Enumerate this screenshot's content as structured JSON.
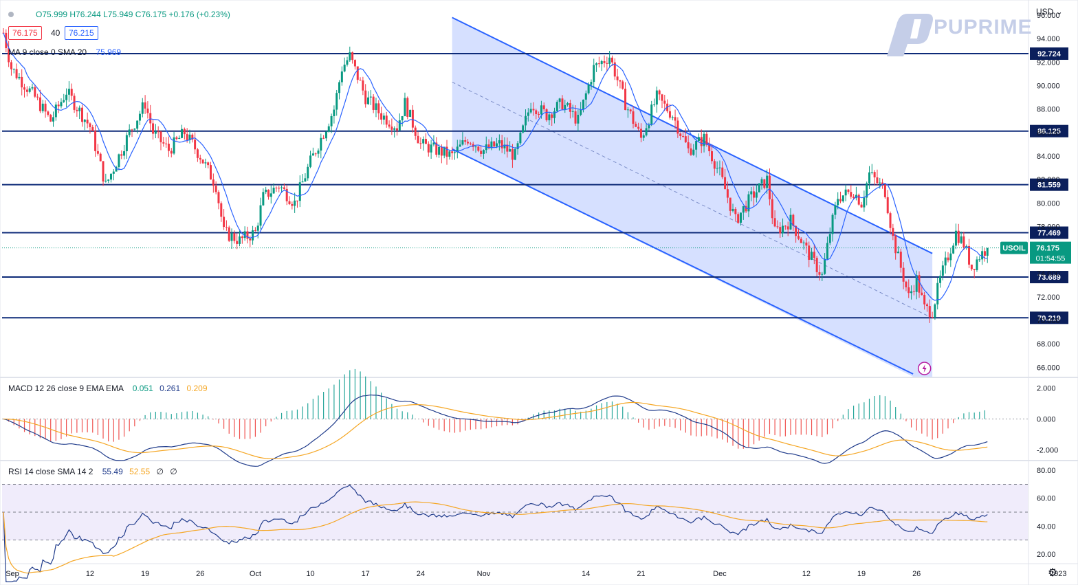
{
  "header": {
    "ohlc": "O75.999  H76.244  L75.949  C76.175  +0.176 (+0.23%)",
    "bid": "76.175",
    "spread": "40",
    "ask": "76.215",
    "currency": "USD",
    "ma_label": "MA 9 close 0 SMA 20",
    "ma_value": "75.969"
  },
  "logo": {
    "text": "PUPRIME"
  },
  "colors": {
    "up": "#089981",
    "down": "#f23645",
    "ma": "#2962ff",
    "channel_fill": "#c8d6ff",
    "channel_line": "#2962ff",
    "level_line": "#0d2a78",
    "macd": "#1e3a8a",
    "signal": "#f5a623",
    "rsi": "#1e3a8a",
    "rsi_sma": "#f5a623",
    "rsi_band": "#f0ecfb"
  },
  "chart_data": [
    {
      "type": "candlestick",
      "symbol": "USOIL",
      "last_price": "76.175",
      "countdown": "01:54:55",
      "y_ticks": [
        "96.000",
        "94.000",
        "92.000",
        "90.000",
        "88.000",
        "86.000",
        "84.000",
        "82.000",
        "80.000",
        "78.000",
        "76.000",
        "74.000",
        "72.000",
        "70.000",
        "68.000",
        "66.000"
      ],
      "ylim": [
        65.2,
        97.0
      ],
      "x_labels": [
        "Sep",
        "12",
        "19",
        "26",
        "Oct",
        "10",
        "17",
        "24",
        "Nov",
        "14",
        "21",
        "Dec",
        "12",
        "19",
        "26",
        "2023"
      ],
      "horizontal_levels": [
        "92.724",
        "86.125",
        "81.559",
        "77.469",
        "73.689",
        "70.219"
      ],
      "channel": {
        "upper": [
          {
            "x": "Oct 28",
            "y": 95.8
          },
          {
            "x": "Dec 28",
            "y": 75.7
          }
        ],
        "mid": [
          {
            "x": "Oct 28",
            "y": 90.3
          },
          {
            "x": "Dec 28",
            "y": 70.2
          }
        ],
        "lower": [
          {
            "x": "Oct 28",
            "y": 84.6
          },
          {
            "x": "Dec 28",
            "y": 64.5
          }
        ]
      },
      "close_path": [
        {
          "x": "Sep 1",
          "y": 94.5
        },
        {
          "x": "Sep 2",
          "y": 91.5
        },
        {
          "x": "Sep 5",
          "y": 89.0
        },
        {
          "x": "Sep 7",
          "y": 87.0
        },
        {
          "x": "Sep 9",
          "y": 89.5
        },
        {
          "x": "Sep 12",
          "y": 86.5
        },
        {
          "x": "Sep 14",
          "y": 81.5
        },
        {
          "x": "Sep 15",
          "y": 83.0
        },
        {
          "x": "Sep 17",
          "y": 86.0
        },
        {
          "x": "Sep 19",
          "y": 88.5
        },
        {
          "x": "Sep 20",
          "y": 86.0
        },
        {
          "x": "Sep 22",
          "y": 84.5
        },
        {
          "x": "Sep 24",
          "y": 86.0
        },
        {
          "x": "Sep 26",
          "y": 84.0
        },
        {
          "x": "Sep 28",
          "y": 81.5
        },
        {
          "x": "Sep 29",
          "y": 77.5
        },
        {
          "x": "Oct 1",
          "y": 76.8
        },
        {
          "x": "Oct 3",
          "y": 77.5
        },
        {
          "x": "Oct 4",
          "y": 80.5
        },
        {
          "x": "Oct 6",
          "y": 81.5
        },
        {
          "x": "Oct 8",
          "y": 80.0
        },
        {
          "x": "Oct 10",
          "y": 83.5
        },
        {
          "x": "Oct 12",
          "y": 86.5
        },
        {
          "x": "Oct 13",
          "y": 88.0
        },
        {
          "x": "Oct 14",
          "y": 91.5
        },
        {
          "x": "Oct 15",
          "y": 92.5
        },
        {
          "x": "Oct 17",
          "y": 89.0
        },
        {
          "x": "Oct 19",
          "y": 87.5
        },
        {
          "x": "Oct 21",
          "y": 86.5
        },
        {
          "x": "Oct 22",
          "y": 88.5
        },
        {
          "x": "Oct 24",
          "y": 85.0
        },
        {
          "x": "Oct 26",
          "y": 84.5
        },
        {
          "x": "Oct 28",
          "y": 84.0
        },
        {
          "x": "Oct 30",
          "y": 85.5
        },
        {
          "x": "Nov 1",
          "y": 84.5
        },
        {
          "x": "Nov 3",
          "y": 85.0
        },
        {
          "x": "Nov 5",
          "y": 84.0
        },
        {
          "x": "Nov 7",
          "y": 88.5
        },
        {
          "x": "Nov 9",
          "y": 87.5
        },
        {
          "x": "Nov 11",
          "y": 88.5
        },
        {
          "x": "Nov 13",
          "y": 87.0
        },
        {
          "x": "Nov 15",
          "y": 91.5
        },
        {
          "x": "Nov 17",
          "y": 92.5
        },
        {
          "x": "Nov 19",
          "y": 88.5
        },
        {
          "x": "Nov 21",
          "y": 85.5
        },
        {
          "x": "Nov 23",
          "y": 89.0
        },
        {
          "x": "Nov 25",
          "y": 87.5
        },
        {
          "x": "Nov 27",
          "y": 84.5
        },
        {
          "x": "Nov 29",
          "y": 85.5
        },
        {
          "x": "Dec 1",
          "y": 82.5
        },
        {
          "x": "Dec 3",
          "y": 78.5
        },
        {
          "x": "Dec 5",
          "y": 80.5
        },
        {
          "x": "Dec 7",
          "y": 82.0
        },
        {
          "x": "Dec 8",
          "y": 77.5
        },
        {
          "x": "Dec 10",
          "y": 78.5
        },
        {
          "x": "Dec 12",
          "y": 76.0
        },
        {
          "x": "Dec 14",
          "y": 73.8
        },
        {
          "x": "Dec 15",
          "y": 77.5
        },
        {
          "x": "Dec 16",
          "y": 80.5
        },
        {
          "x": "Dec 18",
          "y": 81.0
        },
        {
          "x": "Dec 19",
          "y": 80.0
        },
        {
          "x": "Dec 20",
          "y": 82.5
        },
        {
          "x": "Dec 22",
          "y": 81.0
        },
        {
          "x": "Dec 23",
          "y": 77.0
        },
        {
          "x": "Dec 24",
          "y": 74.5
        },
        {
          "x": "Dec 25",
          "y": 72.0
        },
        {
          "x": "Dec 26",
          "y": 73.5
        },
        {
          "x": "Dec 27",
          "y": 71.0
        },
        {
          "x": "Dec 28",
          "y": 70.8
        },
        {
          "x": "Dec 29",
          "y": 73.5
        },
        {
          "x": "Dec 30",
          "y": 75.5
        },
        {
          "x": "Dec 31",
          "y": 77.5
        },
        {
          "x": "Jan 1",
          "y": 76.5
        },
        {
          "x": "Jan 2",
          "y": 74.5
        },
        {
          "x": "Jan 3",
          "y": 75.5
        },
        {
          "x": "Jan 4",
          "y": 76.2
        }
      ]
    },
    {
      "type": "line",
      "label": "MACD 12 26 close 9 EMA EMA",
      "values": [
        "0.051",
        "0.261",
        "0.209"
      ],
      "y_ticks": [
        "2.000",
        "0.000",
        "-2.000"
      ],
      "ylim": [
        -2.6,
        2.6
      ]
    },
    {
      "type": "line",
      "label": "RSI 14 close SMA 14 2",
      "values": [
        "55.49",
        "52.55",
        "∅",
        "∅"
      ],
      "y_ticks": [
        "80.00",
        "60.00",
        "40.00",
        "20.00"
      ],
      "ylim": [
        14,
        86
      ],
      "bands": [
        70,
        50,
        30
      ]
    }
  ]
}
